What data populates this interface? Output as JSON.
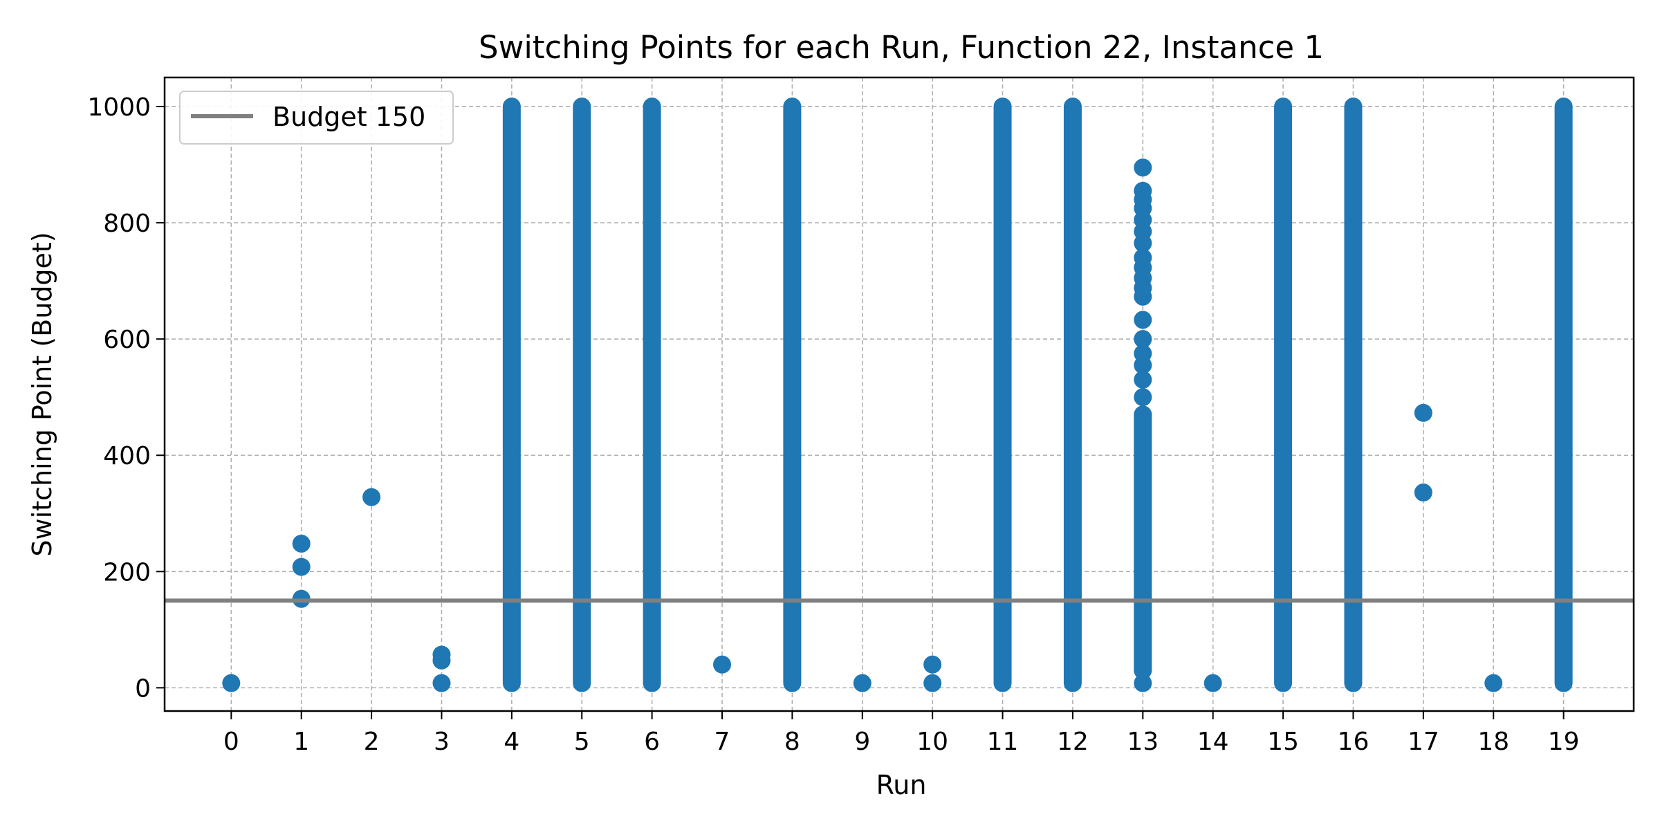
{
  "chart_data": {
    "type": "scatter",
    "title": "Switching Points for each Run, Function 22, Instance 1",
    "xlabel": "Run",
    "ylabel": "Switching Point (Budget)",
    "x_ticks": [
      "0",
      "1",
      "2",
      "3",
      "4",
      "5",
      "6",
      "7",
      "8",
      "9",
      "10",
      "11",
      "12",
      "13",
      "14",
      "15",
      "16",
      "17",
      "18",
      "19"
    ],
    "y_ticks": [
      0,
      200,
      400,
      600,
      800,
      1000
    ],
    "xlim": [
      -0.95,
      20.0
    ],
    "ylim": [
      -40,
      1050
    ],
    "grid": true,
    "legend": {
      "position": "top-left",
      "entries": [
        "Budget 150"
      ]
    },
    "reference_line": {
      "name": "Budget 150",
      "y": 150,
      "color": "#808080"
    },
    "marker_color": "#1f77b4",
    "points": [
      {
        "x": 0,
        "y": 8
      },
      {
        "x": 1,
        "y": 153
      },
      {
        "x": 1,
        "y": 208
      },
      {
        "x": 1,
        "y": 248
      },
      {
        "x": 2,
        "y": 328
      },
      {
        "x": 3,
        "y": 8
      },
      {
        "x": 3,
        "y": 47
      },
      {
        "x": 3,
        "y": 57
      },
      {
        "x": 7,
        "y": 40
      },
      {
        "x": 9,
        "y": 8
      },
      {
        "x": 10,
        "y": 8
      },
      {
        "x": 10,
        "y": 40
      },
      {
        "x": 13,
        "y": 8
      },
      {
        "x": 13,
        "y": 30
      },
      {
        "x": 13,
        "y": 470
      },
      {
        "x": 13,
        "y": 500
      },
      {
        "x": 13,
        "y": 530
      },
      {
        "x": 13,
        "y": 555
      },
      {
        "x": 13,
        "y": 575
      },
      {
        "x": 13,
        "y": 600
      },
      {
        "x": 13,
        "y": 633
      },
      {
        "x": 13,
        "y": 673
      },
      {
        "x": 13,
        "y": 688
      },
      {
        "x": 13,
        "y": 705
      },
      {
        "x": 13,
        "y": 723
      },
      {
        "x": 13,
        "y": 740
      },
      {
        "x": 13,
        "y": 765
      },
      {
        "x": 13,
        "y": 785
      },
      {
        "x": 13,
        "y": 805
      },
      {
        "x": 13,
        "y": 825
      },
      {
        "x": 13,
        "y": 840
      },
      {
        "x": 13,
        "y": 855
      },
      {
        "x": 13,
        "y": 895
      },
      {
        "x": 14,
        "y": 8
      },
      {
        "x": 17,
        "y": 336
      },
      {
        "x": 17,
        "y": 473
      },
      {
        "x": 18,
        "y": 8
      }
    ],
    "dense_ranges": [
      {
        "x": 4,
        "y_min": 8,
        "y_max": 1000
      },
      {
        "x": 5,
        "y_min": 8,
        "y_max": 1000
      },
      {
        "x": 6,
        "y_min": 8,
        "y_max": 1000
      },
      {
        "x": 8,
        "y_min": 8,
        "y_max": 1000
      },
      {
        "x": 11,
        "y_min": 8,
        "y_max": 1000
      },
      {
        "x": 12,
        "y_min": 8,
        "y_max": 1000
      },
      {
        "x": 13,
        "y_min": 30,
        "y_max": 470
      },
      {
        "x": 15,
        "y_min": 8,
        "y_max": 1000
      },
      {
        "x": 16,
        "y_min": 8,
        "y_max": 1000
      },
      {
        "x": 19,
        "y_min": 8,
        "y_max": 1000
      }
    ]
  }
}
